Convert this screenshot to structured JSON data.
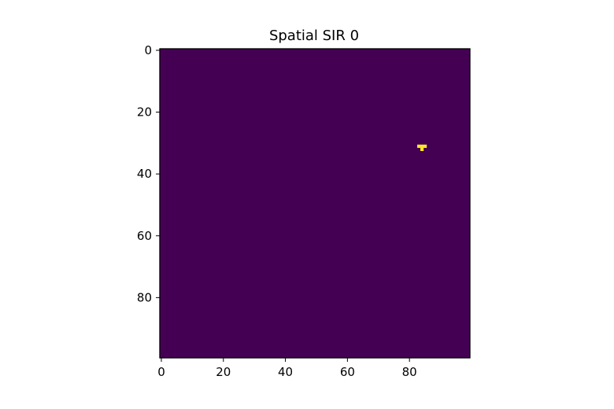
{
  "chart_data": {
    "type": "heatmap",
    "title": "Spatial SIR 0",
    "xlabel": "",
    "ylabel": "",
    "grid_size": [
      100,
      100
    ],
    "xlim": [
      -0.5,
      99.5
    ],
    "ylim": [
      99.5,
      -0.5
    ],
    "x_ticks": [
      0,
      20,
      40,
      60,
      80
    ],
    "y_ticks": [
      0,
      20,
      40,
      60,
      80
    ],
    "x_tick_labels": [
      "0",
      "20",
      "40",
      "60",
      "80"
    ],
    "y_tick_labels": [
      "0",
      "20",
      "40",
      "60",
      "80"
    ],
    "grid": false,
    "colormap": "viridis",
    "background_value": 0,
    "background_color": "#440154",
    "highlight_color": "#fde725",
    "highlighted_cells": [
      {
        "row": 31,
        "col": 83
      },
      {
        "row": 31,
        "col": 84
      },
      {
        "row": 31,
        "col": 85
      },
      {
        "row": 32,
        "col": 84
      }
    ]
  }
}
